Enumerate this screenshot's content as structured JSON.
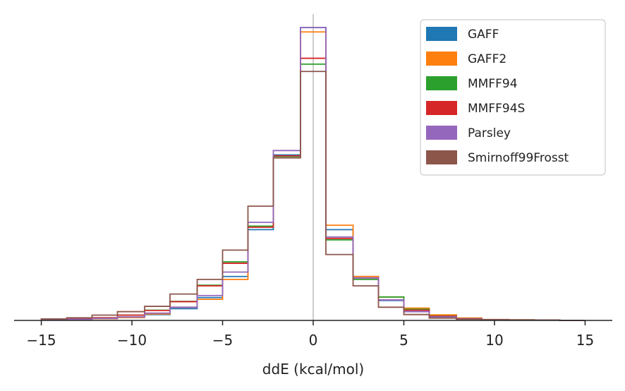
{
  "chart_data": {
    "type": "histogram-step",
    "title": "",
    "xlabel": "ddE (kcal/mol)",
    "ylabel": "",
    "xlim": [
      -16.5,
      16.5
    ],
    "ylim": [
      0,
      1
    ],
    "xticks": [
      -15,
      -10,
      -5,
      0,
      5,
      10,
      15
    ],
    "xtick_labels": [
      "−15",
      "−10",
      "−5",
      "0",
      "5",
      "10",
      "15"
    ],
    "y_axis_visible": false,
    "vline_x": 0,
    "grid": false,
    "legend_position": "top-right",
    "bin_edges": [
      -15.0,
      -13.6,
      -12.2,
      -10.8,
      -9.3,
      -7.9,
      -6.4,
      -5.0,
      -3.6,
      -2.2,
      -0.7,
      0.7,
      2.2,
      3.6,
      5.0,
      6.4,
      7.9,
      9.3,
      10.8,
      12.2,
      13.6,
      15.0
    ],
    "series": [
      {
        "name": "GAFF",
        "color": "#1f77b4",
        "values": [
          0.002,
          0.004,
          0.006,
          0.01,
          0.02,
          0.04,
          0.078,
          0.15,
          0.31,
          0.565,
          1.0,
          0.31,
          0.15,
          0.068,
          0.03,
          0.012,
          0.006,
          0.003,
          0.002,
          0.001,
          0.0
        ]
      },
      {
        "name": "GAFF2",
        "color": "#ff7f0e",
        "values": [
          0.002,
          0.004,
          0.006,
          0.01,
          0.022,
          0.045,
          0.072,
          0.14,
          0.322,
          0.56,
          0.985,
          0.325,
          0.15,
          0.08,
          0.042,
          0.019,
          0.008,
          0.003,
          0.002,
          0.001,
          0.0
        ]
      },
      {
        "name": "MMFF94",
        "color": "#2ca02c",
        "values": [
          0.003,
          0.006,
          0.009,
          0.018,
          0.035,
          0.065,
          0.12,
          0.2,
          0.322,
          0.56,
          0.875,
          0.275,
          0.14,
          0.08,
          0.038,
          0.015,
          0.006,
          0.002,
          0.001,
          0.001,
          0.0
        ]
      },
      {
        "name": "MMFF94S",
        "color": "#d62728",
        "values": [
          0.003,
          0.006,
          0.009,
          0.018,
          0.034,
          0.064,
          0.118,
          0.195,
          0.318,
          0.562,
          0.895,
          0.28,
          0.145,
          0.07,
          0.035,
          0.014,
          0.006,
          0.002,
          0.001,
          0.001,
          0.0
        ]
      },
      {
        "name": "Parsley",
        "color": "#9467bd",
        "values": [
          0.002,
          0.004,
          0.007,
          0.012,
          0.025,
          0.045,
          0.085,
          0.165,
          0.335,
          0.58,
          1.0,
          0.285,
          0.145,
          0.07,
          0.03,
          0.012,
          0.005,
          0.002,
          0.001,
          0.001,
          0.0
        ]
      },
      {
        "name": "Smirnoff99Frosst",
        "color": "#8c564b",
        "values": [
          0.005,
          0.009,
          0.018,
          0.03,
          0.048,
          0.09,
          0.14,
          0.24,
          0.39,
          0.555,
          0.85,
          0.225,
          0.118,
          0.045,
          0.02,
          0.008,
          0.004,
          0.002,
          0.001,
          0.001,
          0.0
        ]
      }
    ]
  }
}
